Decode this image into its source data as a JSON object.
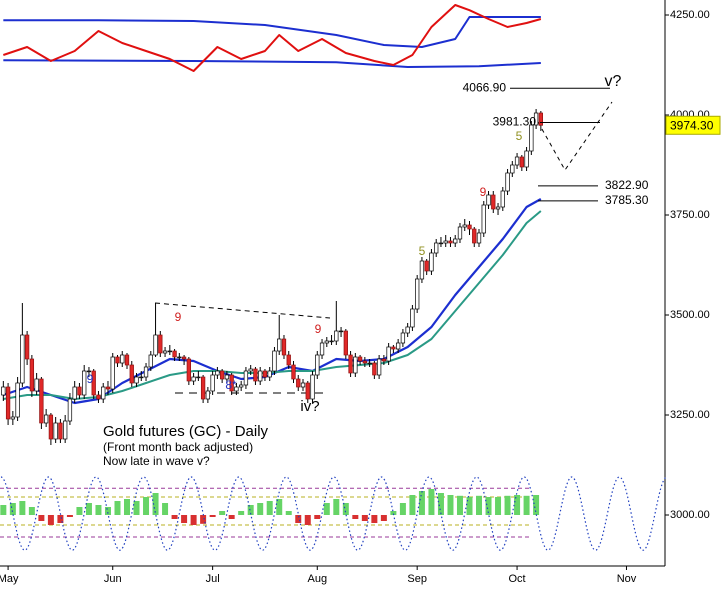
{
  "chart_data": {
    "type": "candlestick",
    "title": "Gold futures (GC) - Daily",
    "subtitle": [
      "(Front month back adjusted)",
      "Now late in wave v?"
    ],
    "xlim": [
      -0.7,
      139.1
    ],
    "xticks": [
      {
        "value": 1,
        "label": "May"
      },
      {
        "value": 23,
        "label": "Jun"
      },
      {
        "value": 44,
        "label": "Jul"
      },
      {
        "value": 66,
        "label": "Aug"
      },
      {
        "value": 87,
        "label": "Sep"
      },
      {
        "value": 108,
        "label": "Oct"
      },
      {
        "value": 131,
        "label": "Nov"
      }
    ],
    "ylim": [
      2872.5,
      4287.5
    ],
    "yticks": [
      {
        "value": 3000,
        "label": "3000.00"
      },
      {
        "value": 3250,
        "label": "3250.00"
      },
      {
        "value": 3500,
        "label": "3500.00"
      },
      {
        "value": 3750,
        "label": "3750.00"
      },
      {
        "value": 4000,
        "label": "4000.00"
      },
      {
        "value": 4250,
        "label": "4250.00"
      }
    ],
    "up_color": "#ffffff",
    "down_color": "#e02828",
    "ohlc": [
      [
        3300,
        3335,
        3285,
        3320
      ],
      [
        3320,
        3330,
        3225,
        3240
      ],
      [
        3240,
        3260,
        3225,
        3245
      ],
      [
        3245,
        3345,
        3235,
        3330
      ],
      [
        3330,
        3530,
        3320,
        3450
      ],
      [
        3450,
        3460,
        3375,
        3390
      ],
      [
        3390,
        3400,
        3295,
        3310
      ],
      [
        3310,
        3355,
        3300,
        3340
      ],
      [
        3340,
        3345,
        3215,
        3230
      ],
      [
        3230,
        3265,
        3220,
        3250
      ],
      [
        3250,
        3255,
        3175,
        3190
      ],
      [
        3190,
        3245,
        3180,
        3230
      ],
      [
        3230,
        3240,
        3180,
        3190
      ],
      [
        3190,
        3250,
        3180,
        3235
      ],
      [
        3235,
        3305,
        3225,
        3290
      ],
      [
        3290,
        3335,
        3280,
        3320
      ],
      [
        3320,
        3330,
        3290,
        3300
      ],
      [
        3300,
        3375,
        3290,
        3360
      ],
      [
        3360,
        3370,
        3345,
        3360
      ],
      [
        3360,
        3365,
        3290,
        3300
      ],
      [
        3300,
        3310,
        3280,
        3290
      ],
      [
        3290,
        3330,
        3280,
        3320
      ],
      [
        3320,
        3335,
        3300,
        3315
      ],
      [
        3315,
        3405,
        3305,
        3395
      ],
      [
        3395,
        3400,
        3370,
        3380
      ],
      [
        3380,
        3410,
        3370,
        3400
      ],
      [
        3400,
        3405,
        3365,
        3375
      ],
      [
        3375,
        3385,
        3320,
        3330
      ],
      [
        3330,
        3355,
        3320,
        3345
      ],
      [
        3345,
        3360,
        3335,
        3345
      ],
      [
        3345,
        3380,
        3335,
        3370
      ],
      [
        3370,
        3410,
        3360,
        3400
      ],
      [
        3400,
        3530,
        3395,
        3450
      ],
      [
        3450,
        3460,
        3395,
        3405
      ],
      [
        3405,
        3420,
        3395,
        3410
      ],
      [
        3410,
        3425,
        3400,
        3410
      ],
      [
        3410,
        3415,
        3385,
        3395
      ],
      [
        3395,
        3405,
        3385,
        3395
      ],
      [
        3395,
        3400,
        3375,
        3390
      ],
      [
        3390,
        3395,
        3325,
        3335
      ],
      [
        3335,
        3355,
        3325,
        3345
      ],
      [
        3345,
        3360,
        3335,
        3345
      ],
      [
        3345,
        3350,
        3280,
        3290
      ],
      [
        3290,
        3320,
        3280,
        3310
      ],
      [
        3310,
        3360,
        3300,
        3350
      ],
      [
        3350,
        3370,
        3340,
        3360
      ],
      [
        3360,
        3365,
        3330,
        3340
      ],
      [
        3340,
        3360,
        3330,
        3350
      ],
      [
        3350,
        3355,
        3300,
        3310
      ],
      [
        3310,
        3330,
        3300,
        3320
      ],
      [
        3320,
        3335,
        3310,
        3325
      ],
      [
        3325,
        3370,
        3315,
        3360
      ],
      [
        3360,
        3375,
        3350,
        3365
      ],
      [
        3365,
        3370,
        3325,
        3335
      ],
      [
        3335,
        3370,
        3325,
        3360
      ],
      [
        3360,
        3365,
        3335,
        3345
      ],
      [
        3345,
        3370,
        3335,
        3360
      ],
      [
        3360,
        3420,
        3350,
        3410
      ],
      [
        3410,
        3500,
        3400,
        3440
      ],
      [
        3440,
        3450,
        3390,
        3400
      ],
      [
        3400,
        3410,
        3365,
        3375
      ],
      [
        3375,
        3385,
        3330,
        3340
      ],
      [
        3340,
        3350,
        3310,
        3320
      ],
      [
        3320,
        3340,
        3310,
        3330
      ],
      [
        3330,
        3335,
        3280,
        3290
      ],
      [
        3290,
        3360,
        3280,
        3350
      ],
      [
        3350,
        3410,
        3340,
        3400
      ],
      [
        3400,
        3440,
        3390,
        3430
      ],
      [
        3430,
        3445,
        3420,
        3435
      ],
      [
        3435,
        3450,
        3425,
        3435
      ],
      [
        3435,
        3535,
        3425,
        3460
      ],
      [
        3460,
        3470,
        3445,
        3460
      ],
      [
        3460,
        3465,
        3390,
        3400
      ],
      [
        3400,
        3410,
        3345,
        3355
      ],
      [
        3355,
        3405,
        3345,
        3395
      ],
      [
        3395,
        3400,
        3375,
        3385
      ],
      [
        3385,
        3395,
        3370,
        3380
      ],
      [
        3380,
        3390,
        3370,
        3380
      ],
      [
        3380,
        3385,
        3340,
        3350
      ],
      [
        3350,
        3400,
        3340,
        3390
      ],
      [
        3390,
        3400,
        3375,
        3385
      ],
      [
        3385,
        3430,
        3375,
        3420
      ],
      [
        3420,
        3425,
        3405,
        3415
      ],
      [
        3415,
        3440,
        3405,
        3430
      ],
      [
        3430,
        3465,
        3420,
        3455
      ],
      [
        3455,
        3480,
        3445,
        3470
      ],
      [
        3470,
        3525,
        3460,
        3515
      ],
      [
        3515,
        3600,
        3505,
        3590
      ],
      [
        3590,
        3645,
        3580,
        3635
      ],
      [
        3635,
        3640,
        3600,
        3610
      ],
      [
        3610,
        3665,
        3600,
        3655
      ],
      [
        3655,
        3690,
        3645,
        3680
      ],
      [
        3680,
        3695,
        3670,
        3680
      ],
      [
        3680,
        3700,
        3670,
        3685
      ],
      [
        3685,
        3695,
        3670,
        3680
      ],
      [
        3680,
        3700,
        3670,
        3690
      ],
      [
        3690,
        3730,
        3680,
        3720
      ],
      [
        3720,
        3740,
        3710,
        3725
      ],
      [
        3725,
        3735,
        3700,
        3715
      ],
      [
        3715,
        3720,
        3670,
        3680
      ],
      [
        3680,
        3715,
        3670,
        3705
      ],
      [
        3705,
        3785,
        3695,
        3775
      ],
      [
        3775,
        3810,
        3765,
        3800
      ],
      [
        3800,
        3810,
        3755,
        3765
      ],
      [
        3765,
        3780,
        3750,
        3770
      ],
      [
        3770,
        3820,
        3760,
        3810
      ],
      [
        3810,
        3865,
        3800,
        3855
      ],
      [
        3855,
        3885,
        3845,
        3875
      ],
      [
        3875,
        3905,
        3865,
        3895
      ],
      [
        3895,
        3900,
        3860,
        3870
      ],
      [
        3870,
        3920,
        3860,
        3910
      ],
      [
        3910,
        3985,
        3900,
        3975
      ],
      [
        3975,
        4015,
        3965,
        4005
      ],
      [
        4005,
        4010,
        3960,
        3974.3
      ]
    ],
    "lines": [
      {
        "color": "#1c2fd0",
        "width": 2.2,
        "x": [
          0,
          5,
          10,
          15,
          20,
          25,
          30,
          35,
          40,
          45,
          50,
          55,
          60,
          65,
          70,
          75,
          80,
          85,
          90,
          95,
          100,
          105,
          110,
          113
        ],
        "values": [
          3300,
          3320,
          3300,
          3280,
          3290,
          3330,
          3360,
          3390,
          3385,
          3360,
          3340,
          3345,
          3370,
          3360,
          3390,
          3385,
          3390,
          3420,
          3470,
          3550,
          3620,
          3690,
          3770,
          3790
        ]
      },
      {
        "color": "#2a9a86",
        "width": 2,
        "x": [
          0,
          5,
          10,
          15,
          20,
          25,
          30,
          35,
          40,
          45,
          50,
          55,
          60,
          65,
          70,
          75,
          80,
          85,
          90,
          95,
          100,
          105,
          110,
          113
        ],
        "values": [
          3290,
          3300,
          3300,
          3290,
          3295,
          3310,
          3330,
          3350,
          3360,
          3360,
          3355,
          3355,
          3360,
          3360,
          3370,
          3375,
          3380,
          3400,
          3440,
          3510,
          3580,
          3650,
          3730,
          3760
        ]
      },
      {
        "color": "#1c2fd0",
        "width": 2,
        "x": [
          0,
          20,
          40,
          55,
          70,
          80,
          88,
          95,
          98,
          113
        ],
        "values": [
          4237,
          4237,
          4235,
          4225,
          4200,
          4175,
          4170,
          4190,
          4245,
          4245
        ]
      },
      {
        "color": "#1c2fd0",
        "width": 2,
        "x": [
          0,
          40,
          70,
          85,
          100,
          113
        ],
        "values": [
          4137,
          4135,
          4132,
          4120,
          4122,
          4130
        ]
      },
      {
        "color": "#e01010",
        "width": 2,
        "x": [
          0,
          5,
          10,
          15,
          20,
          25,
          30,
          35,
          40,
          45,
          50,
          55,
          58,
          62,
          67,
          72,
          78,
          82,
          86,
          90,
          95,
          98,
          102,
          106,
          110,
          113
        ],
        "values": [
          4150,
          4170,
          4135,
          4160,
          4210,
          4180,
          4160,
          4140,
          4110,
          4170,
          4140,
          4160,
          4200,
          4160,
          4190,
          4155,
          4135,
          4125,
          4150,
          4220,
          4275,
          4262,
          4240,
          4220,
          4230,
          4240
        ]
      }
    ],
    "levels": [
      {
        "label": "4066.90",
        "value": 4066.9
      },
      {
        "label": "3981.30",
        "value": 3981.3
      },
      {
        "label": "3822.90",
        "value": 3822.9
      },
      {
        "label": "3785.30",
        "value": 3785.3
      }
    ],
    "last_price": {
      "label": "3974.30",
      "value": 3974.3,
      "color": "#ffff00"
    },
    "annotations": [
      "9",
      "9",
      "9",
      "9",
      "5",
      "5",
      "8*",
      "iv?",
      "v?"
    ],
    "histogram": {
      "positive_color": "#66d466",
      "negative_color": "#d83030",
      "x": [
        0,
        2,
        4,
        6,
        8,
        10,
        12,
        14,
        16,
        18,
        20,
        22,
        24,
        26,
        28,
        30,
        32,
        34,
        36,
        38,
        40,
        42,
        44,
        46,
        48,
        50,
        52,
        54,
        56,
        58,
        60,
        62,
        64,
        66,
        68,
        70,
        72,
        74,
        76,
        78,
        80,
        82,
        84,
        86,
        88,
        90,
        92,
        94,
        96,
        98,
        100,
        102,
        104,
        106,
        108,
        110,
        112
      ],
      "values": [
        3025,
        3030,
        3035,
        3020,
        2985,
        2975,
        2980,
        2995,
        3020,
        3030,
        3025,
        3020,
        3035,
        3040,
        3035,
        3045,
        3055,
        3030,
        2990,
        2980,
        2975,
        2978,
        2995,
        3010,
        2990,
        3010,
        3025,
        3030,
        3035,
        3040,
        3010,
        2980,
        2975,
        2990,
        3030,
        3040,
        3030,
        2990,
        2985,
        2980,
        2985,
        3010,
        3030,
        3050,
        3060,
        3065,
        3055,
        3050,
        3048,
        3045,
        3048,
        3045,
        3045,
        3048,
        3050,
        3048,
        3050
      ]
    },
    "cycle": {
      "color": "#2040c0",
      "x": [
        -0.5,
        4.5,
        9.5,
        14.5,
        19.5,
        24.5,
        29.5,
        34.5,
        39.5,
        44.5,
        49.5,
        54.5,
        59.5,
        64.5,
        69.5,
        74.5,
        79.5,
        84.5,
        89.5,
        94.5,
        99.5,
        104.5,
        109.5,
        114.5,
        119.5,
        124.5,
        129.5,
        134.5,
        139.5
      ],
      "values": [
        3095,
        2912,
        3095,
        2912,
        3095,
        2912,
        3095,
        2912,
        3095,
        2912,
        3095,
        2912,
        3095,
        2912,
        3095,
        2912,
        3095,
        2912,
        3095,
        2912,
        3095,
        2912,
        3095,
        2912,
        3095,
        2912,
        3095,
        2912,
        3095
      ]
    },
    "osc_levels": [
      {
        "value": 3067,
        "color": "#9a3a9a"
      },
      {
        "value": 3045,
        "color": "#b8b020"
      },
      {
        "value": 2975,
        "color": "#b8b020"
      },
      {
        "value": 2945,
        "color": "#9a3a9a"
      }
    ]
  }
}
